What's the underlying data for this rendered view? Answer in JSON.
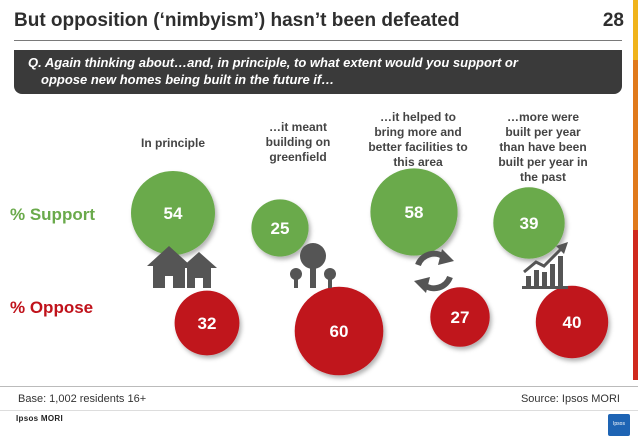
{
  "header": {
    "title": "But opposition (‘nimbyism’) hasn’t been defeated",
    "page_number": "28"
  },
  "question": {
    "line1": "Q.  Again thinking about…and, in principle, to what extent would you support or",
    "line2": "oppose new homes being built in the future if…"
  },
  "rows": {
    "support_label": "% Support",
    "oppose_label": "% Oppose"
  },
  "columns": [
    {
      "lines": [
        "In principle"
      ],
      "icon": "houses-icon"
    },
    {
      "lines": [
        "…it meant",
        "building on",
        "greenfield"
      ],
      "icon": "trees-icon"
    },
    {
      "lines": [
        "…it helped to",
        "bring more and",
        "better facilities to",
        "this area"
      ],
      "icon": "recycle-arrows-icon"
    },
    {
      "lines": [
        "…more were",
        "built per year",
        "than have been",
        "built per year in",
        "the past"
      ],
      "icon": "growth-chart-icon"
    }
  ],
  "chart_data": {
    "type": "bubble",
    "categories": [
      "In principle",
      "…it meant building on greenfield",
      "…it helped to bring more and better facilities to this area",
      "…more were built per year than have been built per year in the past"
    ],
    "series": [
      {
        "name": "% Support",
        "values": [
          54,
          25,
          58,
          39
        ],
        "color": "#6aaa4b"
      },
      {
        "name": "% Oppose",
        "values": [
          32,
          60,
          27,
          40
        ],
        "color": "#c0121b"
      }
    ]
  },
  "footer": {
    "base": "Base: 1,002 residents 16+",
    "source": "Source: Ipsos MORI",
    "brand": "Ipsos MORI",
    "logo": "Ipsos"
  },
  "colors": {
    "support": "#6aaa4b",
    "oppose": "#c0121b",
    "icon": "#555555",
    "question_bg": "#3a3a3a"
  }
}
